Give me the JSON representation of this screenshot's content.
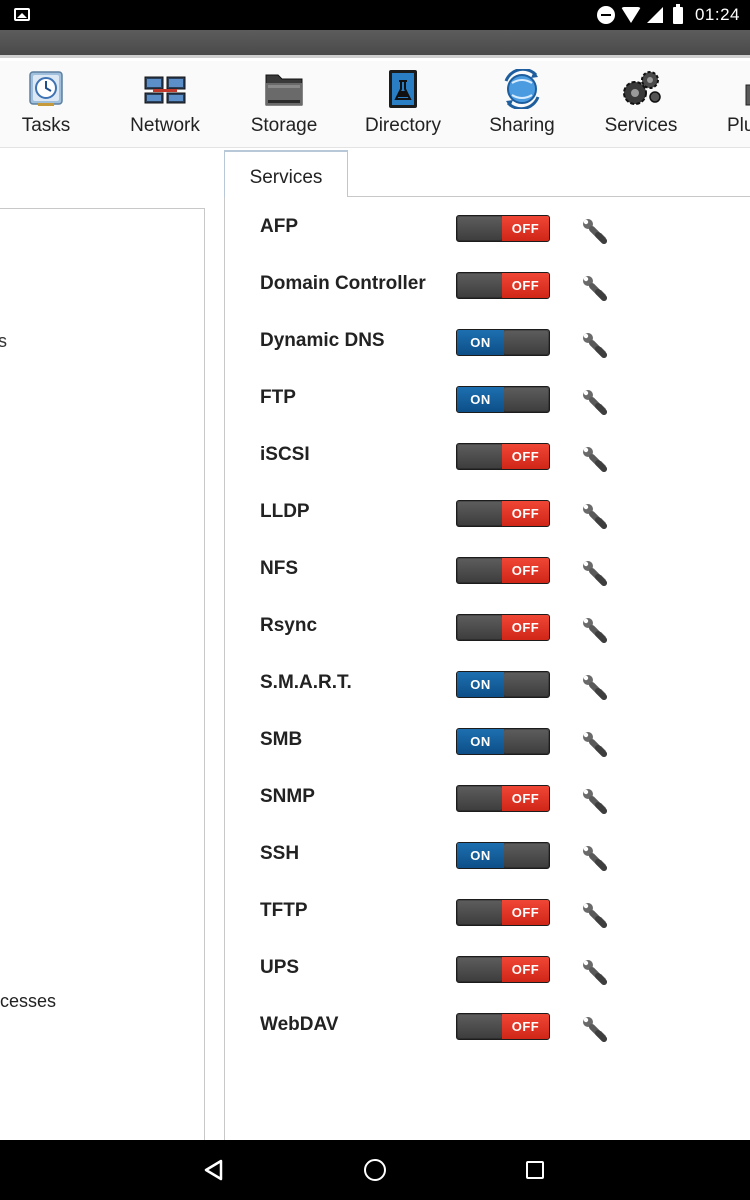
{
  "status_bar": {
    "time": "01:24",
    "icons": [
      "image-notification-icon",
      "do-not-disturb-icon",
      "wifi-icon",
      "signal-icon",
      "battery-icon"
    ]
  },
  "toolbar": {
    "items": [
      {
        "label": "Tasks",
        "icon": "tasks-icon"
      },
      {
        "label": "Network",
        "icon": "network-icon"
      },
      {
        "label": "Storage",
        "icon": "storage-icon"
      },
      {
        "label": "Directory",
        "icon": "directory-icon"
      },
      {
        "label": "Sharing",
        "icon": "sharing-icon"
      },
      {
        "label": "Services",
        "icon": "services-icon"
      },
      {
        "label": "Plu",
        "icon": "plugins-icon"
      }
    ]
  },
  "left_panel": {
    "fragment_1": "s",
    "fragment_2": "cesses"
  },
  "tab": {
    "label": "Services"
  },
  "services": [
    {
      "name": "AFP",
      "state": "OFF"
    },
    {
      "name": "Domain Controller",
      "state": "OFF"
    },
    {
      "name": "Dynamic DNS",
      "state": "ON"
    },
    {
      "name": "FTP",
      "state": "ON"
    },
    {
      "name": "iSCSI",
      "state": "OFF"
    },
    {
      "name": "LLDP",
      "state": "OFF"
    },
    {
      "name": "NFS",
      "state": "OFF"
    },
    {
      "name": "Rsync",
      "state": "OFF"
    },
    {
      "name": "S.M.A.R.T.",
      "state": "ON"
    },
    {
      "name": "SMB",
      "state": "ON"
    },
    {
      "name": "SNMP",
      "state": "OFF"
    },
    {
      "name": "SSH",
      "state": "ON"
    },
    {
      "name": "TFTP",
      "state": "OFF"
    },
    {
      "name": "UPS",
      "state": "OFF"
    },
    {
      "name": "WebDAV",
      "state": "OFF"
    }
  ],
  "colors": {
    "toggle_on": "#0d4f88",
    "toggle_off": "#e0331f",
    "toggle_body": "#3a3a3a"
  }
}
